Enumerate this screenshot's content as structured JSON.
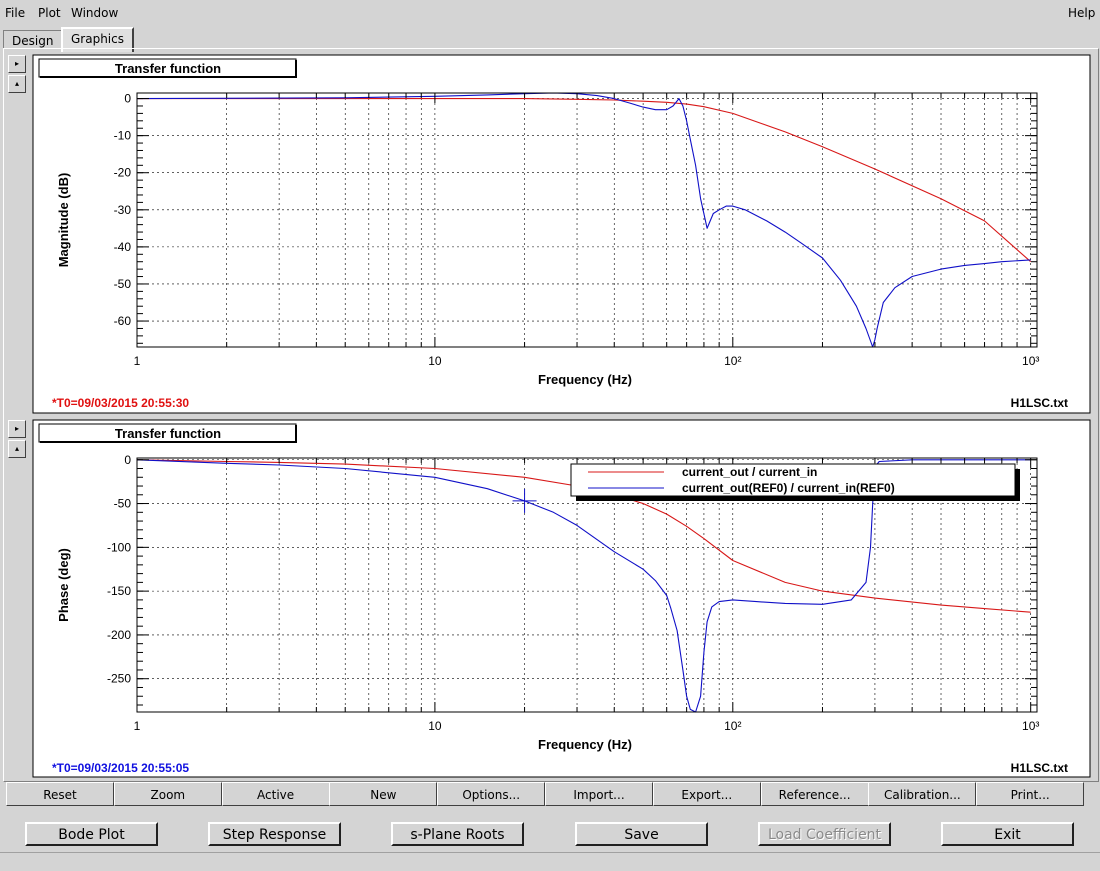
{
  "menu": {
    "file": "File",
    "plot": "Plot",
    "window": "Window",
    "help": "Help"
  },
  "tabs": [
    "Design",
    "Graphics"
  ],
  "active_tab": "Graphics",
  "panel_arrow_right": "▸",
  "panel_arrow_up": "▴",
  "plot_buttons": [
    "Reset",
    "Zoom",
    "Active",
    "New",
    "Options...",
    "Import...",
    "Export...",
    "Reference...",
    "Calibration...",
    "Print..."
  ],
  "bottom_buttons": [
    "Bode Plot",
    "Step Response",
    "s-Plane Roots",
    "Save",
    "Load Coefficient",
    "Exit"
  ],
  "colors": {
    "red": "#d81818",
    "blue": "#1010c8"
  },
  "chart_data": [
    {
      "type": "line",
      "title": "Transfer function",
      "xlabel": "Frequency (Hz)",
      "ylabel": "Magnitude (dB)",
      "xscale": "log",
      "xlim": [
        1,
        1050
      ],
      "ylim": [
        -67,
        1.5
      ],
      "xticks": [
        {
          "v": 1,
          "label": "1"
        },
        {
          "v": 10,
          "label": "10"
        },
        {
          "v": 100,
          "label": "10²"
        },
        {
          "v": 1000,
          "label": "10³"
        }
      ],
      "yticks": [
        0,
        -10,
        -20,
        -30,
        -40,
        -50,
        -60
      ],
      "grid": true,
      "left_stamp": "*T0=09/03/2015 20:55:30",
      "right_stamp": "H1LSC.txt",
      "series": [
        {
          "color": "red",
          "x": [
            1,
            10,
            20,
            30,
            40,
            50,
            60,
            70,
            80,
            100,
            150,
            200,
            300,
            500,
            700,
            1000
          ],
          "y": [
            0,
            0,
            0,
            -0.2,
            -0.4,
            -0.7,
            -1.0,
            -1.5,
            -2.2,
            -4.0,
            -9,
            -13,
            -19,
            -27,
            -33,
            -44
          ]
        },
        {
          "color": "blue",
          "x": [
            1,
            5,
            10,
            15,
            20,
            25,
            30,
            35,
            40,
            45,
            50,
            55,
            60,
            63,
            66,
            68,
            70,
            72,
            75,
            78,
            82,
            84,
            86,
            90,
            95,
            100,
            110,
            130,
            150,
            170,
            200,
            230,
            260,
            280,
            295,
            300,
            305,
            320,
            350,
            400,
            500,
            600,
            700,
            800,
            1000
          ],
          "y": [
            0,
            0.2,
            0.6,
            1.0,
            1.3,
            1.5,
            1.3,
            0.8,
            0,
            -1.2,
            -2.3,
            -3,
            -3,
            -2,
            0,
            -2,
            -6,
            -11,
            -18,
            -27,
            -35,
            -33,
            -31,
            -30,
            -29,
            -29,
            -30,
            -33,
            -36,
            -39,
            -43,
            -49,
            -56,
            -62,
            -67,
            -65,
            -62,
            -55,
            -51,
            -48,
            -46,
            -45,
            -44.5,
            -44,
            -43.5
          ]
        }
      ]
    },
    {
      "type": "line",
      "title": "Transfer function",
      "xlabel": "Frequency (Hz)",
      "ylabel": "Phase (deg)",
      "xscale": "log",
      "xlim": [
        1,
        1050
      ],
      "ylim": [
        -288,
        2
      ],
      "xticks": [
        {
          "v": 1,
          "label": "1"
        },
        {
          "v": 10,
          "label": "10"
        },
        {
          "v": 100,
          "label": "10²"
        },
        {
          "v": 1000,
          "label": "10³"
        }
      ],
      "yticks": [
        0,
        -50,
        -100,
        -150,
        -200,
        -250
      ],
      "grid": true,
      "legend_position": "top-right",
      "left_stamp": "*T0=09/03/2015 20:55:05",
      "right_stamp": "H1LSC.txt",
      "marker": {
        "x": 20,
        "y": -47
      },
      "series": [
        {
          "name": "current_out / current_in",
          "color": "red",
          "x": [
            1,
            2,
            3,
            5,
            10,
            20,
            30,
            40,
            50,
            60,
            70,
            80,
            100,
            150,
            200,
            300,
            500,
            700,
            1000
          ],
          "y": [
            0,
            -2,
            -3,
            -5,
            -10,
            -20,
            -30,
            -40,
            -50,
            -62,
            -76,
            -90,
            -115,
            -140,
            -150,
            -158,
            -166,
            -170,
            -174
          ]
        },
        {
          "name": "current_out(REF0) / current_in(REF0)",
          "color": "blue",
          "x": [
            1,
            2,
            3,
            5,
            10,
            15,
            20,
            25,
            30,
            40,
            50,
            55,
            60,
            62,
            65,
            68,
            70,
            72,
            75,
            78,
            80,
            82,
            85,
            90,
            100,
            120,
            150,
            200,
            250,
            280,
            290,
            295,
            300,
            305,
            310,
            400,
            500,
            700,
            1000
          ],
          "y": [
            0,
            -4,
            -6,
            -10,
            -20,
            -33,
            -47,
            -60,
            -75,
            -105,
            -125,
            -138,
            -155,
            -170,
            -195,
            -240,
            -270,
            -285,
            -288,
            -270,
            -220,
            -185,
            -168,
            -162,
            -160,
            -162,
            -164,
            -165,
            -160,
            -140,
            -100,
            -50,
            -10,
            -5,
            -2,
            0,
            0,
            0,
            0
          ]
        }
      ]
    }
  ]
}
